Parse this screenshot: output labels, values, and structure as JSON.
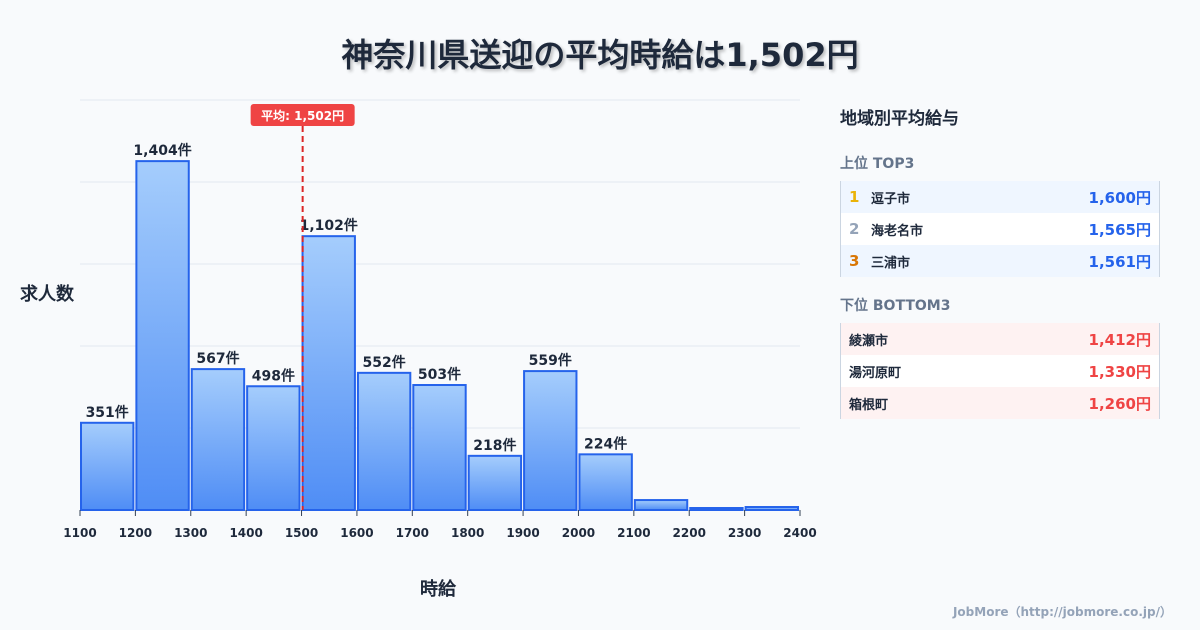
{
  "title": "神奈川県送迎の平均時給は1,502円",
  "chart_data": {
    "type": "bar",
    "title": "神奈川県送迎の平均時給は1,502円",
    "xlabel": "時給",
    "ylabel": "求人数",
    "bin_edges": [
      1100,
      1200,
      1300,
      1400,
      1500,
      1600,
      1700,
      1800,
      1900,
      2000,
      2100,
      2200,
      2300,
      2400
    ],
    "values": [
      351,
      1404,
      567,
      498,
      1102,
      552,
      503,
      218,
      559,
      224,
      40,
      8,
      12
    ],
    "labels": [
      "351件",
      "1,404件",
      "567件",
      "498件",
      "1,102件",
      "552件",
      "503件",
      "218件",
      "559件",
      "224件",
      "",
      "",
      ""
    ],
    "ylim": [
      0,
      1650
    ],
    "grid": true,
    "mean": 1502,
    "mean_label": "平均: 1,502円"
  },
  "panel": {
    "title": "地域別平均給与",
    "top_label": "上位 TOP3",
    "bottom_label": "下位 BOTTOM3",
    "top": [
      {
        "rank": "1",
        "name": "逗子市",
        "value": "1,600円",
        "color": "#eab308"
      },
      {
        "rank": "2",
        "name": "海老名市",
        "value": "1,565円",
        "color": "#94a3b8"
      },
      {
        "rank": "3",
        "name": "三浦市",
        "value": "1,561円",
        "color": "#d97706"
      }
    ],
    "bottom": [
      {
        "name": "綾瀬市",
        "value": "1,412円"
      },
      {
        "name": "湯河原町",
        "value": "1,330円"
      },
      {
        "name": "箱根町",
        "value": "1,260円"
      }
    ]
  },
  "footer": "JobMore（http://jobmore.co.jp/）"
}
